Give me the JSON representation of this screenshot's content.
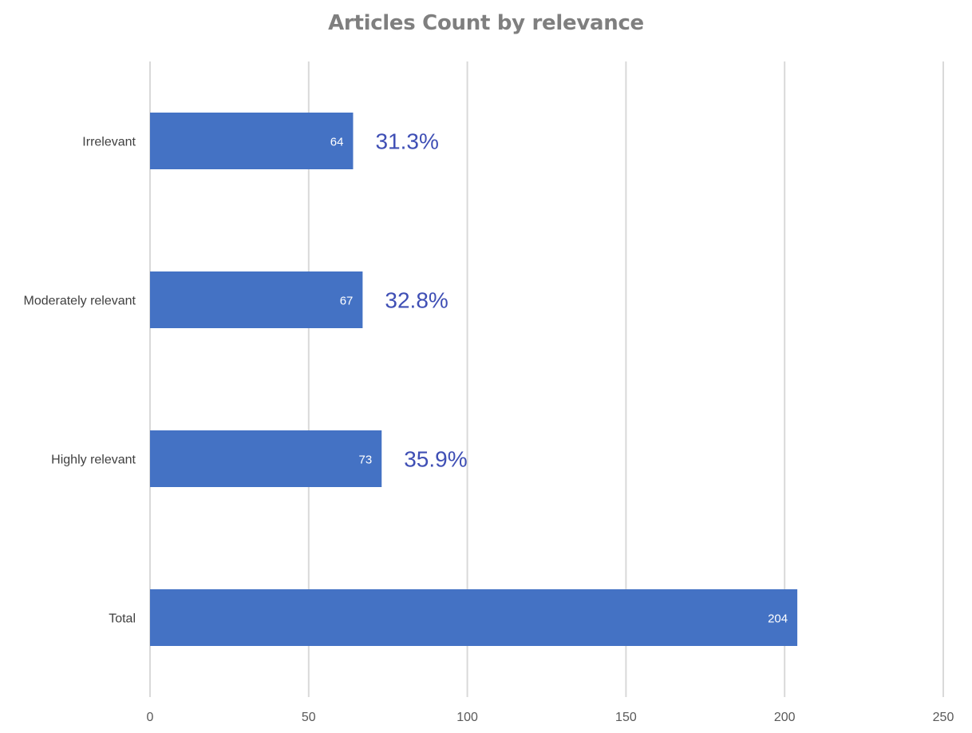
{
  "chart_data": {
    "type": "bar",
    "orientation": "horizontal",
    "title": "Articles Count by relevance",
    "xlabel": "",
    "ylabel": "",
    "categories": [
      "Irrelevant",
      "Moderately relevant",
      "Highly relevant",
      "Total"
    ],
    "values": [
      64,
      67,
      73,
      204
    ],
    "data_labels": [
      "64",
      "67",
      "73",
      "204"
    ],
    "annotations": [
      "31.3%",
      "32.8%",
      "35.9%",
      ""
    ],
    "xlim": [
      0,
      250
    ],
    "x_ticks": [
      "0",
      "50",
      "100",
      "150",
      "200",
      "250"
    ],
    "x_tick_values": [
      0,
      50,
      100,
      150,
      200,
      250
    ],
    "grid": "vertical",
    "legend": "none",
    "colors": {
      "bar": "#4472c4",
      "grid": "#d9d9d9",
      "annotation": "#3f4fb5",
      "title": "#7f7f7f"
    }
  }
}
